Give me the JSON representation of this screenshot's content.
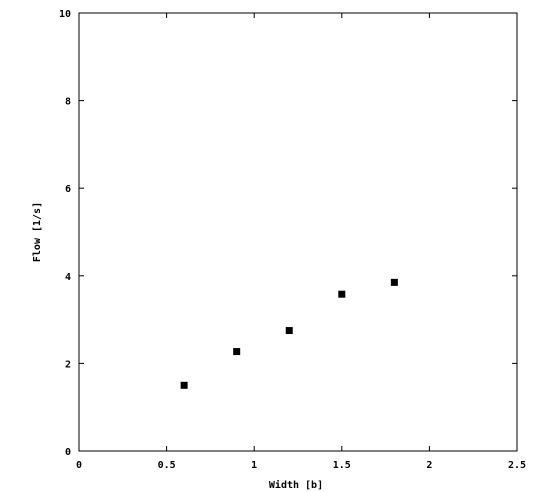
{
  "chart_data": {
    "type": "scatter",
    "title": "",
    "xlabel": "Width [b]",
    "ylabel": "Flow [1/s]",
    "xlim": [
      0,
      2.5
    ],
    "ylim": [
      0,
      10
    ],
    "xticks": [
      "0",
      "0.5",
      "1",
      "1.5",
      "2",
      "2.5"
    ],
    "yticks": [
      "0",
      "2",
      "4",
      "6",
      "8",
      "10"
    ],
    "grid": false,
    "legend": "none",
    "marker_color": "#000000",
    "series": [
      {
        "x": [
          0.6,
          0.9,
          1.2,
          1.5,
          1.8
        ],
        "y": [
          1.5,
          2.27,
          2.75,
          3.58,
          3.85
        ]
      }
    ]
  }
}
